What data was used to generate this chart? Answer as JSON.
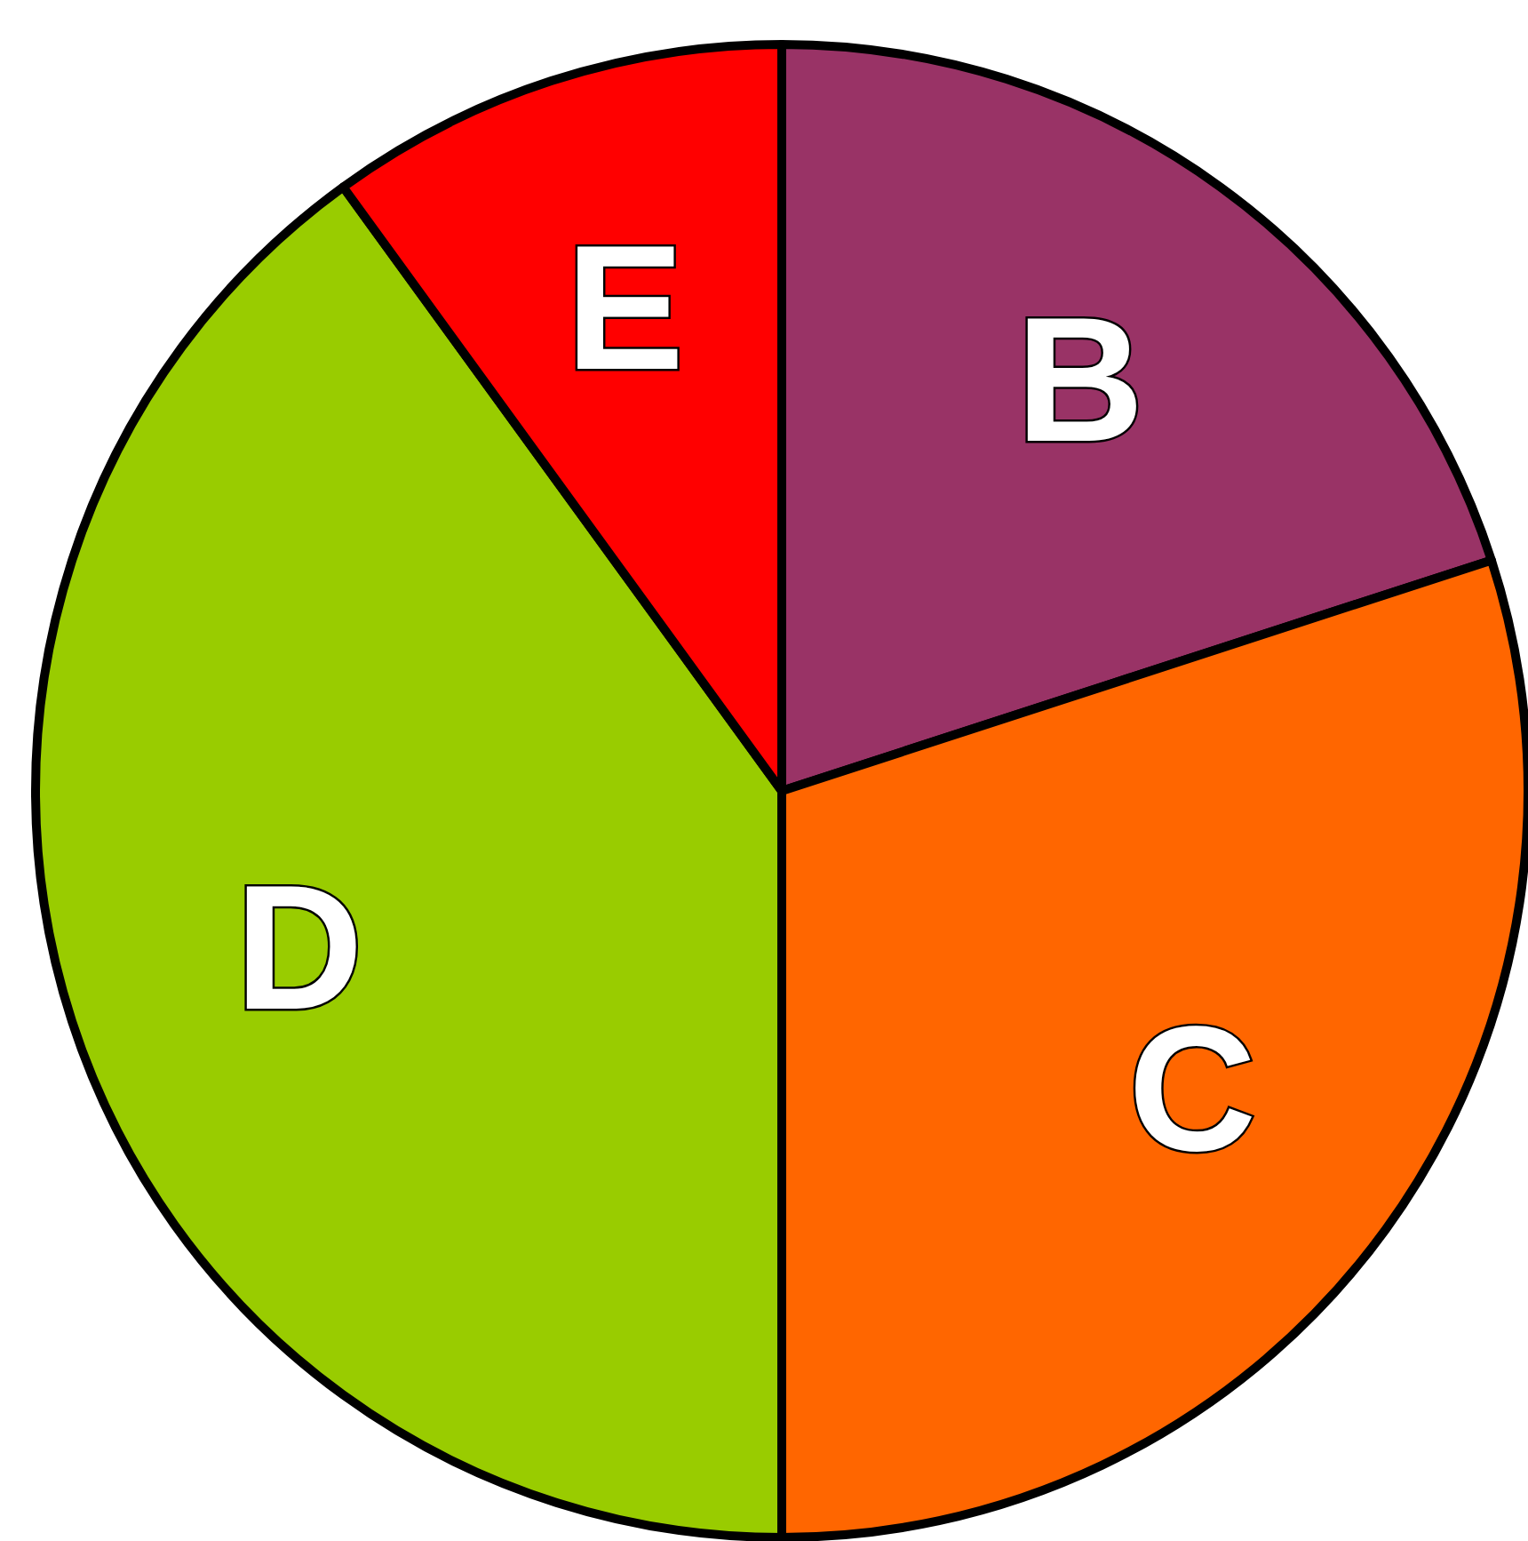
{
  "chart_data": {
    "type": "pie",
    "categories": [
      "B",
      "C",
      "D",
      "E"
    ],
    "values": [
      20,
      30,
      40,
      10
    ],
    "colors": [
      "#993366",
      "#ff6600",
      "#99cc00",
      "#ff0000"
    ]
  }
}
